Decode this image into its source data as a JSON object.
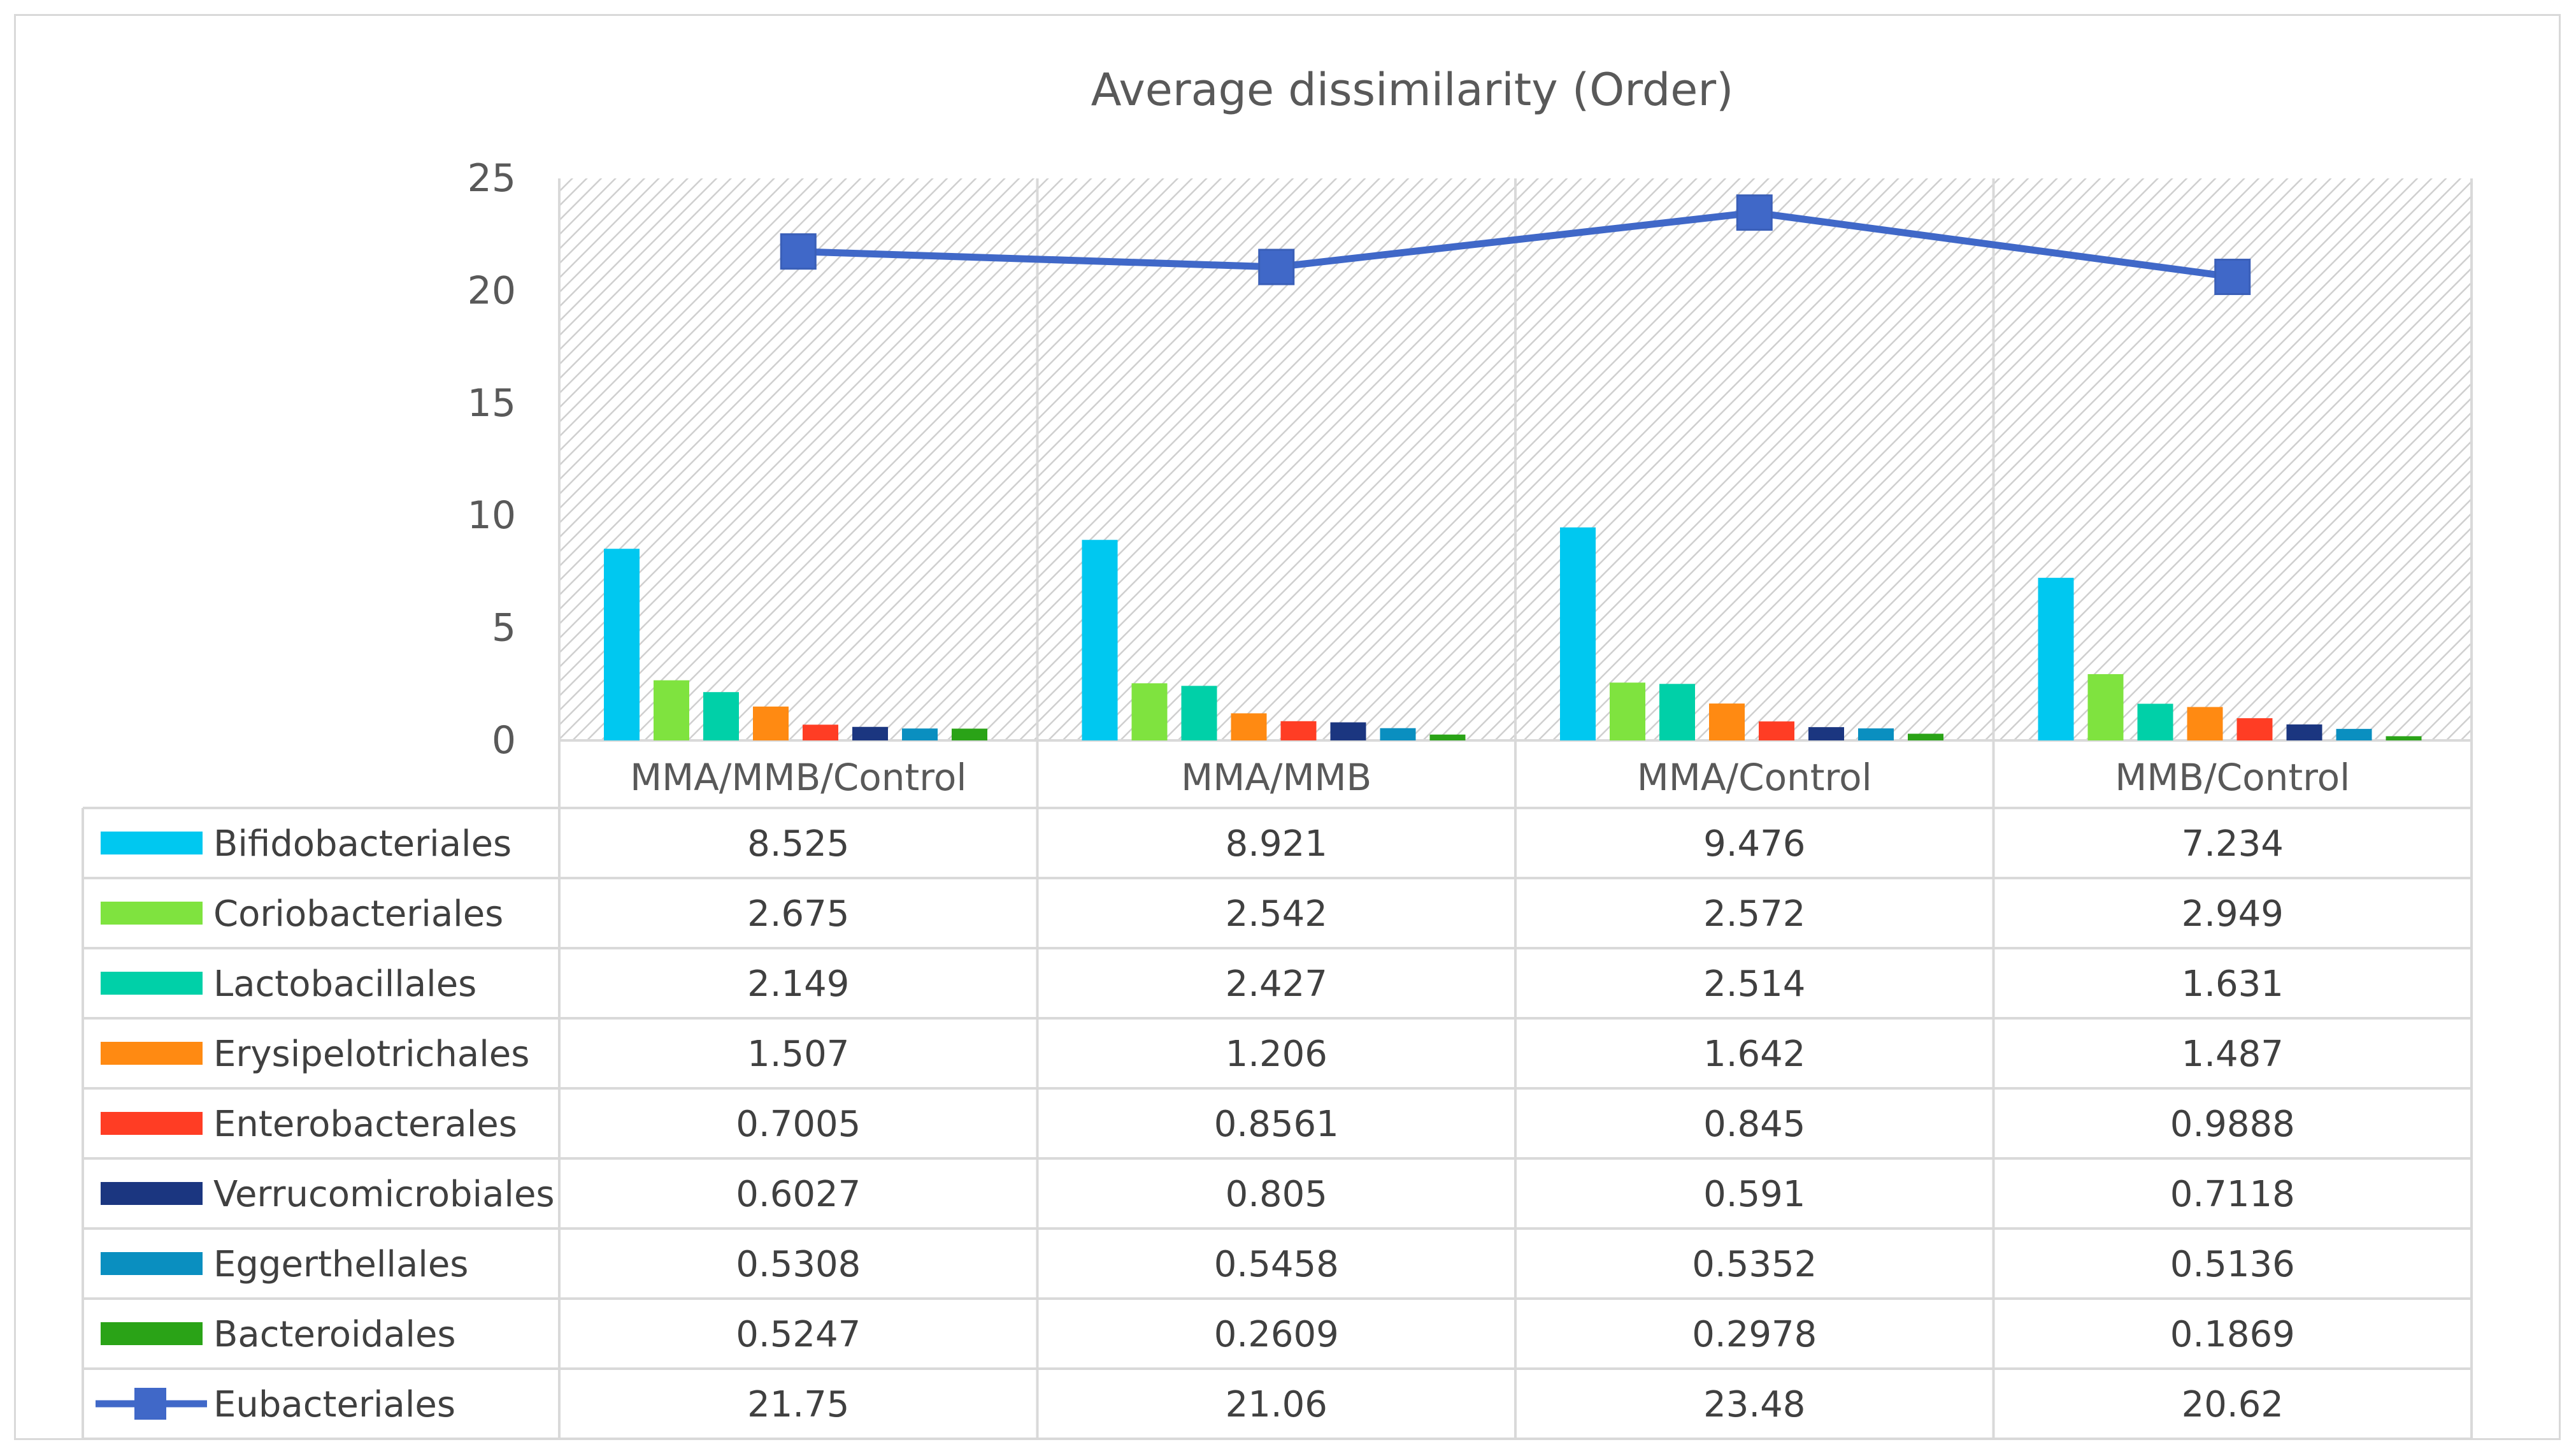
{
  "chart_data": {
    "type": "bar",
    "title": "Average dissimilarity (Order)",
    "categories": [
      "MMA/MMB/Control",
      "MMA/MMB",
      "MMA/Control",
      "MMB/Control"
    ],
    "ylim": [
      0,
      25
    ],
    "yticks": [
      0,
      5,
      10,
      15,
      20,
      25
    ],
    "series": [
      {
        "name": "Bifidobacteriales",
        "kind": "bar",
        "color": "#00c8f0",
        "values": [
          8.525,
          8.921,
          9.476,
          7.234
        ],
        "labels": [
          "8.525",
          "8.921",
          "9.476",
          "7.234"
        ]
      },
      {
        "name": "Coriobacteriales",
        "kind": "bar",
        "color": "#7fe33f",
        "values": [
          2.675,
          2.542,
          2.572,
          2.949
        ],
        "labels": [
          "2.675",
          "2.542",
          "2.572",
          "2.949"
        ]
      },
      {
        "name": "Lactobacillales",
        "kind": "bar",
        "color": "#00d0a8",
        "values": [
          2.149,
          2.427,
          2.514,
          1.631
        ],
        "labels": [
          "2.149",
          "2.427",
          "2.514",
          "1.631"
        ]
      },
      {
        "name": "Erysipelotrichales",
        "kind": "bar",
        "color": "#ff8a12",
        "values": [
          1.507,
          1.206,
          1.642,
          1.487
        ],
        "labels": [
          "1.507",
          "1.206",
          "1.642",
          "1.487"
        ]
      },
      {
        "name": "Enterobacterales",
        "kind": "bar",
        "color": "#ff3d24",
        "values": [
          0.7005,
          0.8561,
          0.845,
          0.9888
        ],
        "labels": [
          "0.7005",
          "0.8561",
          "0.845",
          "0.9888"
        ]
      },
      {
        "name": "Verrucomicrobiales",
        "kind": "bar",
        "color": "#1b3680",
        "values": [
          0.6027,
          0.805,
          0.591,
          0.7118
        ],
        "labels": [
          "0.6027",
          "0.805",
          "0.591",
          "0.7118"
        ]
      },
      {
        "name": "Eggerthellales",
        "kind": "bar",
        "color": "#0a8fc0",
        "values": [
          0.5308,
          0.5458,
          0.5352,
          0.5136
        ],
        "labels": [
          "0.5308",
          "0.5458",
          "0.5352",
          "0.5136"
        ]
      },
      {
        "name": "Bacteroidales",
        "kind": "bar",
        "color": "#2aa317",
        "values": [
          0.5247,
          0.2609,
          0.2978,
          0.1869
        ],
        "labels": [
          "0.5247",
          "0.2609",
          "0.2978",
          "0.1869"
        ]
      },
      {
        "name": "Eubacteriales",
        "kind": "line",
        "color": "#4068c8",
        "values": [
          21.75,
          21.06,
          23.48,
          20.62
        ],
        "labels": [
          "21.75",
          "21.06",
          "23.48",
          "20.62"
        ]
      }
    ],
    "plot_background": "hatched light gray",
    "legend": "data table below chart"
  }
}
